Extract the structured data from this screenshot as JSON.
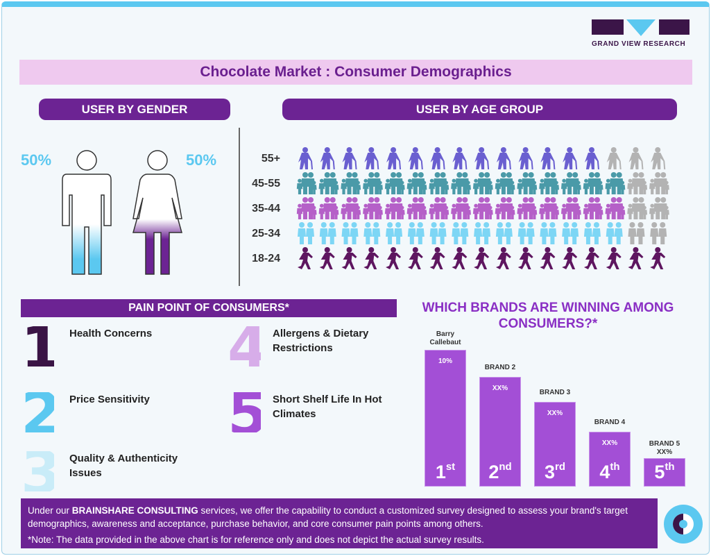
{
  "logo": {
    "text": "GRAND VIEW RESEARCH"
  },
  "title": "Chocolate Market : Consumer Demographics",
  "gender": {
    "heading": "USER BY GENDER",
    "male_pct": "50%",
    "female_pct": "50%",
    "male_fill": 0.5,
    "female_fill": 0.5,
    "colors": {
      "male": "#5bc8f0",
      "female": "#6c2393"
    }
  },
  "age": {
    "heading": "USER BY AGE GROUP",
    "groups": [
      {
        "label": "55+",
        "filled_fraction": 0.8,
        "color": "#6a5fd0",
        "icon": "elderly-person-icon"
      },
      {
        "label": "45-55",
        "filled_fraction": 0.9,
        "color": "#4a9aa8",
        "icon": "family-icon"
      },
      {
        "label": "35-44",
        "filled_fraction": 0.89,
        "color": "#b560c8",
        "icon": "family-icon"
      },
      {
        "label": "25-34",
        "filled_fraction": 0.9,
        "color": "#7dd6f5",
        "icon": "couple-icon"
      },
      {
        "label": "18-24",
        "filled_fraction": 1.0,
        "color": "#5e1660",
        "icon": "running-person-icon"
      }
    ]
  },
  "pain_points": {
    "heading": "PAIN POINT OF CONSUMERS*",
    "items": [
      {
        "num": "1",
        "label": "Health Concerns",
        "color": "#3a1445"
      },
      {
        "num": "2",
        "label": "Price Sensitivity",
        "color": "#5bc8f0"
      },
      {
        "num": "3",
        "label": "Quality & Authenticity Issues",
        "color": "#c9ecf8"
      },
      {
        "num": "4",
        "label": "Allergens & Dietary Restrictions",
        "color": "#d7ade9"
      },
      {
        "num": "5",
        "label": "Short Shelf Life In Hot Climates",
        "color": "#a34fd6"
      }
    ]
  },
  "brands": {
    "heading": "WHICH BRANDS ARE WINNING AMONG CONSUMERS?*",
    "items": [
      {
        "name": "Barry Callebaut",
        "value": "10%",
        "rank": "1",
        "suffix": "st",
        "level": 1.0
      },
      {
        "name": "BRAND 2",
        "value": "XX%",
        "rank": "2",
        "suffix": "nd",
        "level": 0.8
      },
      {
        "name": "BRAND 3",
        "value": "XX%",
        "rank": "3",
        "suffix": "rd",
        "level": 0.62
      },
      {
        "name": "BRAND 4",
        "value": "XX%",
        "rank": "4",
        "suffix": "th",
        "level": 0.4
      },
      {
        "name": "BRAND 5",
        "value": "XX%",
        "rank": "5",
        "suffix": "th",
        "level": 0.21
      }
    ]
  },
  "banner": {
    "pre": "Under our ",
    "highlight": "BRAINSHARE CONSULTING",
    "post": " services, we offer the capability to conduct a customized survey designed to assess your brand's target demographics, awareness and acceptance, purchase behavior, and core consumer pain points among others.",
    "note": "*Note: The data provided in the above chart is for reference only and does not depict the actual survey results."
  }
}
